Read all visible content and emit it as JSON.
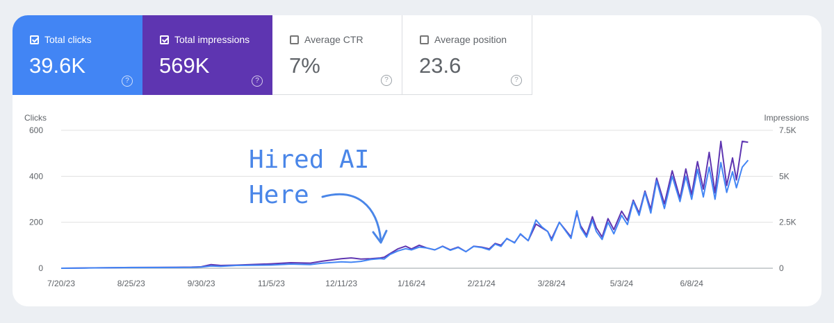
{
  "metrics": [
    {
      "label": "Total clicks",
      "value": "39.6K",
      "checked": true,
      "color": "#4285f4"
    },
    {
      "label": "Total impressions",
      "value": "569K",
      "checked": true,
      "color": "#5e35b1"
    },
    {
      "label": "Average CTR",
      "value": "7%",
      "checked": false,
      "color": "#ffffff"
    },
    {
      "label": "Average position",
      "value": "23.6",
      "checked": false,
      "color": "#ffffff"
    }
  ],
  "help_glyph": "?",
  "chart_data": {
    "type": "line",
    "y_left_label": "Clicks",
    "y_right_label": "Impressions",
    "y_left_ticks": [
      "0",
      "200",
      "400",
      "600"
    ],
    "y_right_ticks": [
      "0",
      "2.5K",
      "5K",
      "7.5K"
    ],
    "y_left_range": [
      0,
      600
    ],
    "y_right_range": [
      0,
      7500
    ],
    "x_ticks": [
      "7/20/23",
      "8/25/23",
      "9/30/23",
      "11/5/23",
      "12/11/23",
      "1/16/24",
      "2/21/24",
      "3/28/24",
      "5/3/24",
      "6/8/24"
    ],
    "grid": true,
    "annotation": {
      "line1": "Hired AI",
      "line2": "Here",
      "date": "1/2/24"
    },
    "series": [
      {
        "name": "Total clicks",
        "axis": "left",
        "color": "#4285f4",
        "points": [
          [
            "7/20/23",
            0
          ],
          [
            "8/1/23",
            1
          ],
          [
            "8/14/23",
            2
          ],
          [
            "8/25/23",
            3
          ],
          [
            "9/8/23",
            3
          ],
          [
            "9/25/23",
            4
          ],
          [
            "9/30/23",
            5
          ],
          [
            "10/5/23",
            10
          ],
          [
            "10/10/23",
            8
          ],
          [
            "10/18/23",
            12
          ],
          [
            "11/5/23",
            14
          ],
          [
            "11/15/23",
            18
          ],
          [
            "11/25/23",
            16
          ],
          [
            "12/1/23",
            22
          ],
          [
            "12/11/23",
            28
          ],
          [
            "12/16/23",
            26
          ],
          [
            "12/21/23",
            30
          ],
          [
            "12/26/23",
            38
          ],
          [
            "12/31/23",
            42
          ],
          [
            "1/2/24",
            40
          ],
          [
            "1/5/24",
            60
          ],
          [
            "1/9/24",
            75
          ],
          [
            "1/13/24",
            85
          ],
          [
            "1/16/24",
            80
          ],
          [
            "1/20/24",
            92
          ],
          [
            "1/24/24",
            88
          ],
          [
            "1/28/24",
            80
          ],
          [
            "2/1/24",
            95
          ],
          [
            "2/5/24",
            78
          ],
          [
            "2/9/24",
            90
          ],
          [
            "2/13/24",
            72
          ],
          [
            "2/17/24",
            95
          ],
          [
            "2/21/24",
            90
          ],
          [
            "2/25/24",
            80
          ],
          [
            "2/28/24",
            105
          ],
          [
            "3/2/24",
            95
          ],
          [
            "3/5/24",
            130
          ],
          [
            "3/9/24",
            110
          ],
          [
            "3/12/24",
            150
          ],
          [
            "3/16/24",
            120
          ],
          [
            "3/20/24",
            210
          ],
          [
            "3/23/24",
            180
          ],
          [
            "3/26/24",
            160
          ],
          [
            "3/28/24",
            120
          ],
          [
            "4/1/24",
            200
          ],
          [
            "4/4/24",
            165
          ],
          [
            "4/7/24",
            130
          ],
          [
            "4/10/24",
            250
          ],
          [
            "4/12/24",
            175
          ],
          [
            "4/15/24",
            135
          ],
          [
            "4/18/24",
            210
          ],
          [
            "4/20/24",
            160
          ],
          [
            "4/23/24",
            125
          ],
          [
            "4/26/24",
            200
          ],
          [
            "4/29/24",
            150
          ],
          [
            "5/3/24",
            230
          ],
          [
            "5/6/24",
            190
          ],
          [
            "5/9/24",
            290
          ],
          [
            "5/12/24",
            230
          ],
          [
            "5/15/24",
            330
          ],
          [
            "5/18/24",
            240
          ],
          [
            "5/21/24",
            380
          ],
          [
            "5/25/24",
            260
          ],
          [
            "5/29/24",
            400
          ],
          [
            "6/2/24",
            290
          ],
          [
            "6/5/24",
            400
          ],
          [
            "6/8/24",
            300
          ],
          [
            "6/11/24",
            430
          ],
          [
            "6/14/24",
            310
          ],
          [
            "6/17/24",
            440
          ],
          [
            "6/20/24",
            300
          ],
          [
            "6/23/24",
            460
          ],
          [
            "6/26/24",
            330
          ],
          [
            "6/29/24",
            420
          ],
          [
            "7/1/24",
            350
          ],
          [
            "7/4/24",
            440
          ],
          [
            "7/7/24",
            470
          ]
        ]
      },
      {
        "name": "Total impressions",
        "axis": "right",
        "color": "#5e35b1",
        "points": [
          [
            "7/20/23",
            0
          ],
          [
            "8/1/23",
            15
          ],
          [
            "8/14/23",
            30
          ],
          [
            "8/25/23",
            40
          ],
          [
            "9/8/23",
            45
          ],
          [
            "9/25/23",
            60
          ],
          [
            "9/30/23",
            80
          ],
          [
            "10/5/23",
            200
          ],
          [
            "10/10/23",
            150
          ],
          [
            "10/18/23",
            170
          ],
          [
            "11/5/23",
            240
          ],
          [
            "11/15/23",
            300
          ],
          [
            "11/25/23",
            280
          ],
          [
            "12/1/23",
            380
          ],
          [
            "12/11/23",
            520
          ],
          [
            "12/16/23",
            560
          ],
          [
            "12/21/23",
            500
          ],
          [
            "12/26/23",
            520
          ],
          [
            "12/31/23",
            560
          ],
          [
            "1/2/24",
            600
          ],
          [
            "1/5/24",
            800
          ],
          [
            "1/9/24",
            1050
          ],
          [
            "1/13/24",
            1200
          ],
          [
            "1/16/24",
            1050
          ],
          [
            "1/20/24",
            1250
          ],
          [
            "1/24/24",
            1100
          ],
          [
            "1/28/24",
            1000
          ],
          [
            "2/1/24",
            1200
          ],
          [
            "2/5/24",
            1000
          ],
          [
            "2/9/24",
            1150
          ],
          [
            "2/13/24",
            900
          ],
          [
            "2/17/24",
            1200
          ],
          [
            "2/21/24",
            1150
          ],
          [
            "2/25/24",
            1050
          ],
          [
            "2/28/24",
            1350
          ],
          [
            "3/2/24",
            1250
          ],
          [
            "3/5/24",
            1600
          ],
          [
            "3/9/24",
            1400
          ],
          [
            "3/12/24",
            1850
          ],
          [
            "3/16/24",
            1500
          ],
          [
            "3/20/24",
            2400
          ],
          [
            "3/23/24",
            2200
          ],
          [
            "3/26/24",
            2000
          ],
          [
            "3/28/24",
            1600
          ],
          [
            "4/1/24",
            2500
          ],
          [
            "4/4/24",
            2100
          ],
          [
            "4/7/24",
            1700
          ],
          [
            "4/10/24",
            3000
          ],
          [
            "4/12/24",
            2300
          ],
          [
            "4/15/24",
            1800
          ],
          [
            "4/18/24",
            2800
          ],
          [
            "4/20/24",
            2200
          ],
          [
            "4/23/24",
            1700
          ],
          [
            "4/26/24",
            2700
          ],
          [
            "4/29/24",
            2100
          ],
          [
            "5/3/24",
            3100
          ],
          [
            "5/6/24",
            2600
          ],
          [
            "5/9/24",
            3700
          ],
          [
            "5/12/24",
            3000
          ],
          [
            "5/15/24",
            4200
          ],
          [
            "5/18/24",
            3200
          ],
          [
            "5/21/24",
            4900
          ],
          [
            "5/25/24",
            3500
          ],
          [
            "5/29/24",
            5300
          ],
          [
            "6/2/24",
            3800
          ],
          [
            "6/5/24",
            5400
          ],
          [
            "6/8/24",
            4000
          ],
          [
            "6/11/24",
            5800
          ],
          [
            "6/14/24",
            4300
          ],
          [
            "6/17/24",
            6300
          ],
          [
            "6/20/24",
            4100
          ],
          [
            "6/23/24",
            6900
          ],
          [
            "6/26/24",
            4500
          ],
          [
            "6/29/24",
            6000
          ],
          [
            "7/1/24",
            4800
          ],
          [
            "7/4/24",
            6900
          ],
          [
            "7/7/24",
            6850
          ]
        ]
      }
    ]
  }
}
